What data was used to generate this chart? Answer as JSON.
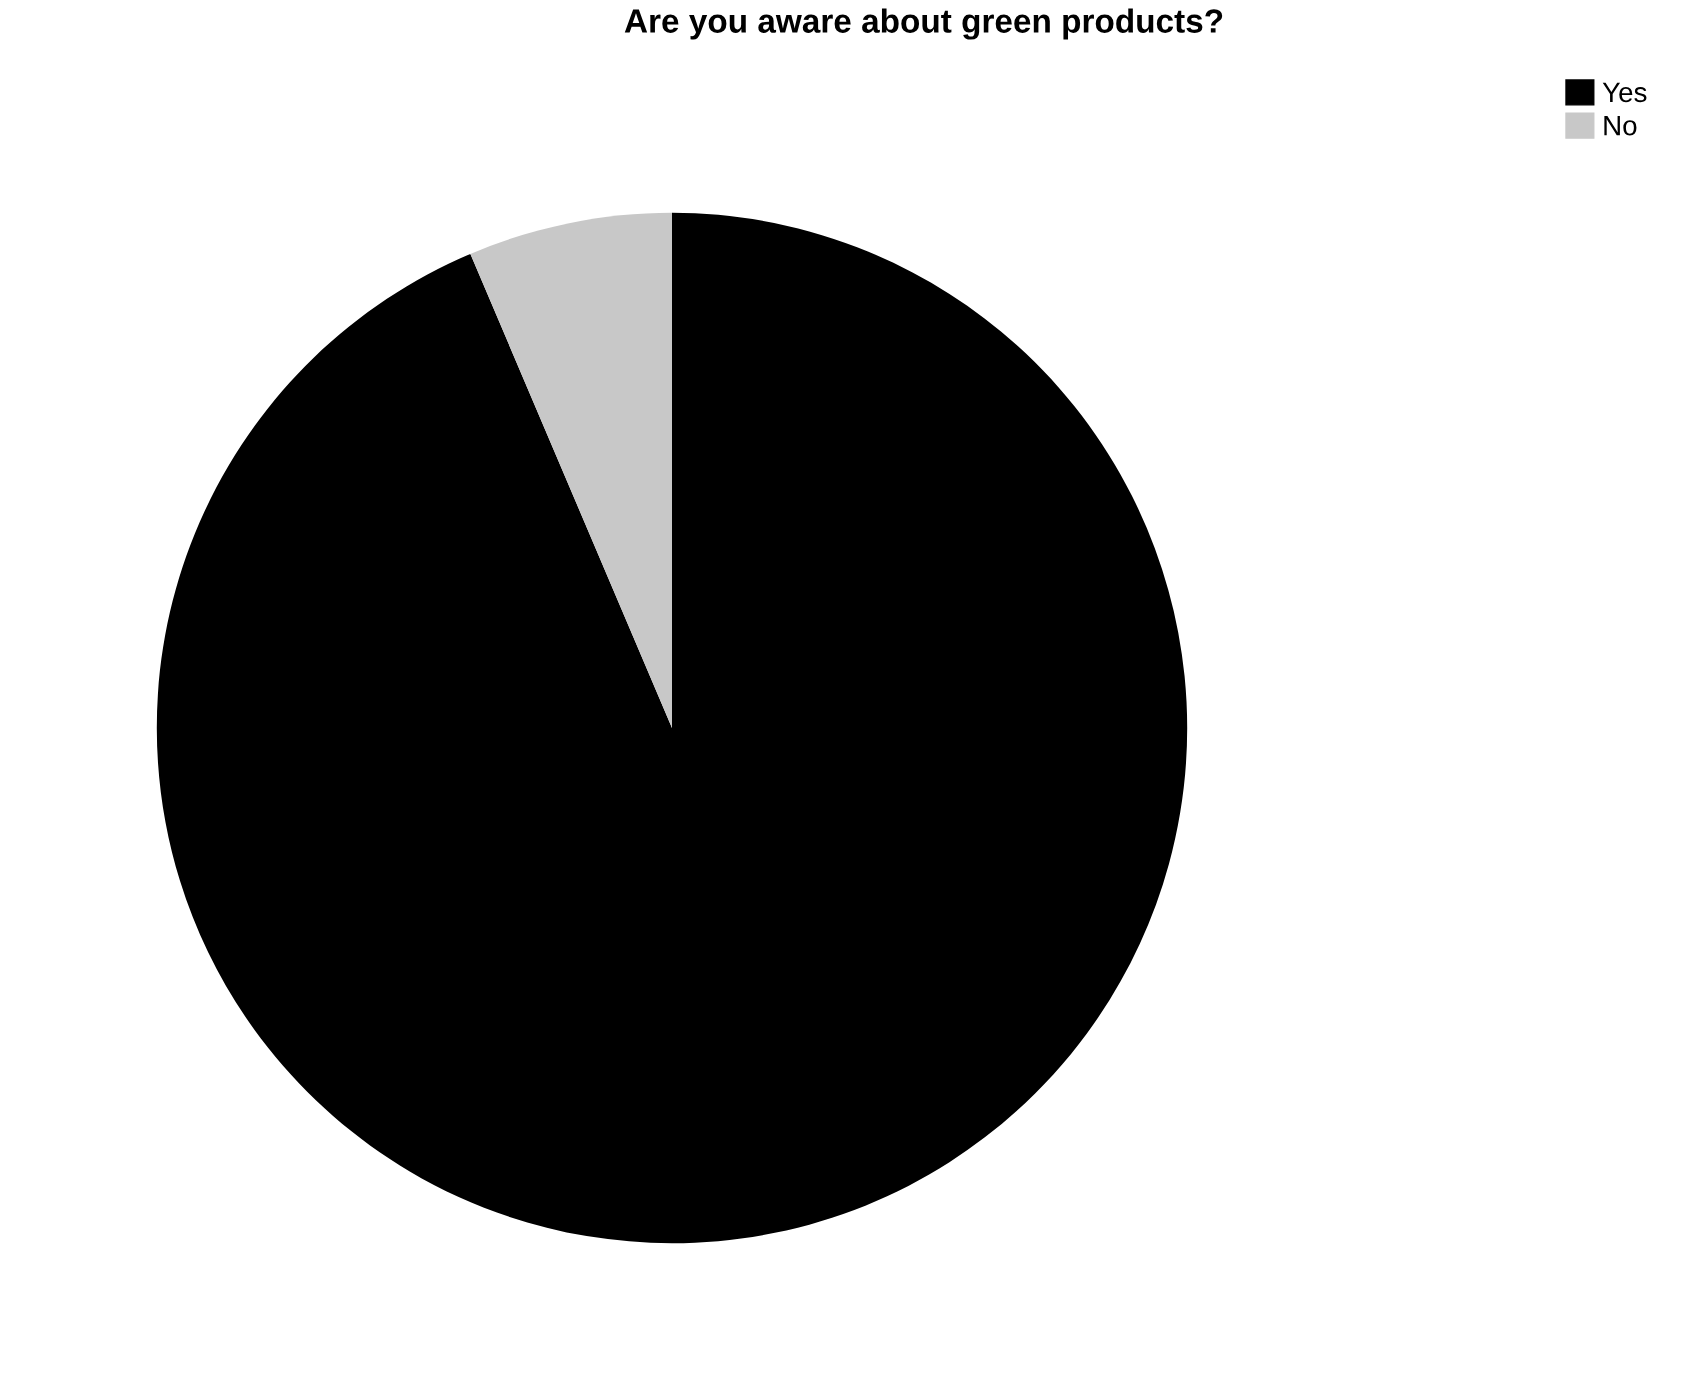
{
  "chart_data": {
    "type": "pie",
    "title": "Are you aware about green products?",
    "categories": [
      "Yes",
      "No"
    ],
    "values": [
      93.6,
      6.4
    ],
    "colors": [
      "#000000",
      "#c8c8c8"
    ],
    "legend": "top right"
  }
}
